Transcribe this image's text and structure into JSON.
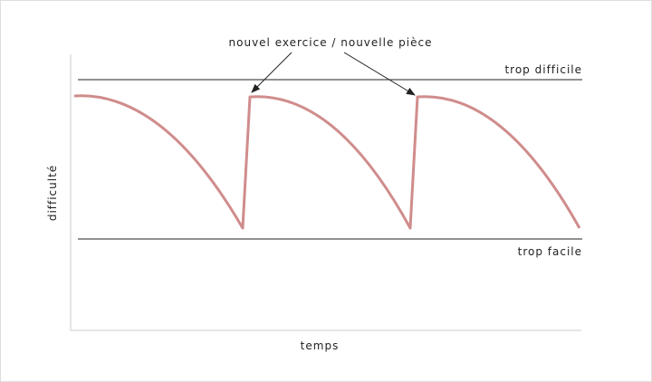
{
  "annotation": "nouvel exercice / nouvelle pièce",
  "upper_line_label": "trop difficile",
  "lower_line_label": "trop facile",
  "x_axis_label": "temps",
  "y_axis_label": "difficulté"
}
